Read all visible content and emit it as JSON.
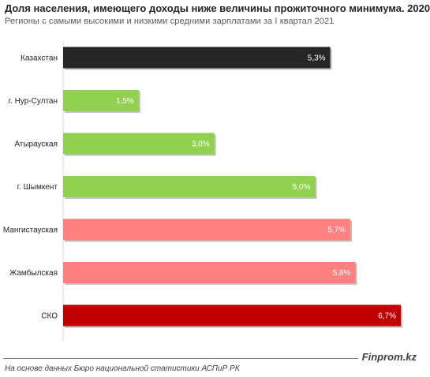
{
  "chart_data": {
    "type": "bar",
    "orientation": "horizontal",
    "title": "Доля населения, имеющего доходы ниже величины прожиточного минимума. 2020",
    "subtitle": "Регионы с самыми  высокими  и  низкими  средними  зарплатами  за I  квартал  2021",
    "categories": [
      "Казахстан",
      "г. Нур-Султан",
      "Атырауская",
      "г. Шымкент",
      "Мангистауская",
      "Жамбылская",
      "СКО"
    ],
    "values": [
      5.3,
      1.5,
      3.0,
      5.0,
      5.7,
      5.8,
      6.7
    ],
    "value_labels": [
      "5,3%",
      "1,5%",
      "3,0%",
      "5,0%",
      "5,7%",
      "5,8%",
      "6,7%"
    ],
    "colors": [
      "#262626",
      "#92d050",
      "#92d050",
      "#92d050",
      "#ff8080",
      "#ff8080",
      "#c00000"
    ],
    "xlim": [
      0,
      6.7
    ],
    "grid": false,
    "legend": "none"
  },
  "footer": {
    "brand": "Finprom.kz",
    "source": "На основе данных Бюро национальной  статистики АСПиР РК"
  }
}
